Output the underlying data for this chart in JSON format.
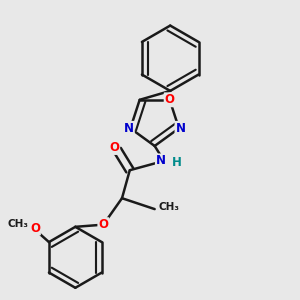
{
  "bg_color": "#e8e8e8",
  "bond_color": "#1a1a1a",
  "bond_width": 1.8,
  "atom_colors": {
    "O": "#ff0000",
    "N": "#0000cc",
    "H": "#008b8b",
    "C": "#1a1a1a"
  },
  "font_size": 8.5,
  "dbo": 0.012
}
